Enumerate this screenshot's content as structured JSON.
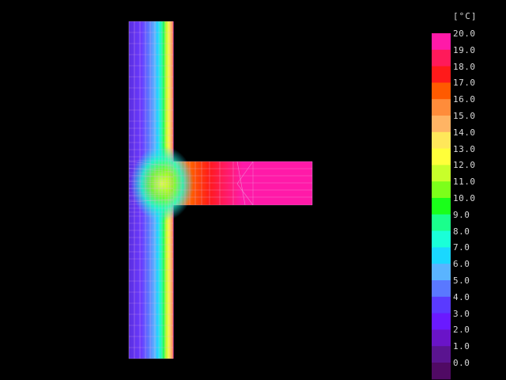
{
  "legend": {
    "unit": "[°C]",
    "levels": [
      {
        "label": "20.0",
        "color": "#ff1aa8"
      },
      {
        "label": "19.0",
        "color": "#ff1a5a"
      },
      {
        "label": "18.0",
        "color": "#ff1a1a"
      },
      {
        "label": "17.0",
        "color": "#ff5a00"
      },
      {
        "label": "16.0",
        "color": "#ff8c3a"
      },
      {
        "label": "15.0",
        "color": "#ffb464"
      },
      {
        "label": "14.0",
        "color": "#ffe75a"
      },
      {
        "label": "13.0",
        "color": "#ffff3a"
      },
      {
        "label": "12.0",
        "color": "#c8ff2a"
      },
      {
        "label": "11.0",
        "color": "#7cff1a"
      },
      {
        "label": "10.0",
        "color": "#1aff1a"
      },
      {
        "label": "9.0",
        "color": "#1aff8c"
      },
      {
        "label": "8.0",
        "color": "#1affd8"
      },
      {
        "label": "7.0",
        "color": "#1ad8ff"
      },
      {
        "label": "6.0",
        "color": "#5ab4ff"
      },
      {
        "label": "5.0",
        "color": "#5a78ff"
      },
      {
        "label": "4.0",
        "color": "#5a3aff"
      },
      {
        "label": "3.0",
        "color": "#6a1aff"
      },
      {
        "label": "2.0",
        "color": "#6a14c8"
      },
      {
        "label": "1.0",
        "color": "#5a1490"
      },
      {
        "label": "0.0",
        "color": "#500a64"
      }
    ]
  },
  "mesh_line_color": "#e6b4e6"
}
